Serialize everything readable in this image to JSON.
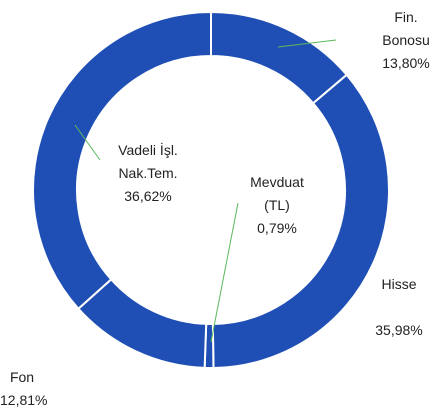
{
  "chart_data": {
    "type": "donut",
    "categories": [
      "Fin. Bonosu",
      "Hisse",
      "Mevduat (TL)",
      "Fon",
      "Vadeli İşl. Nak.Tem."
    ],
    "values": [
      13.8,
      35.98,
      0.79,
      12.81,
      36.62
    ],
    "value_labels": [
      "13,80%",
      "35,98%",
      "0,79%",
      "12,81%",
      "36,62%"
    ],
    "color": "#1f4fb5"
  }
}
